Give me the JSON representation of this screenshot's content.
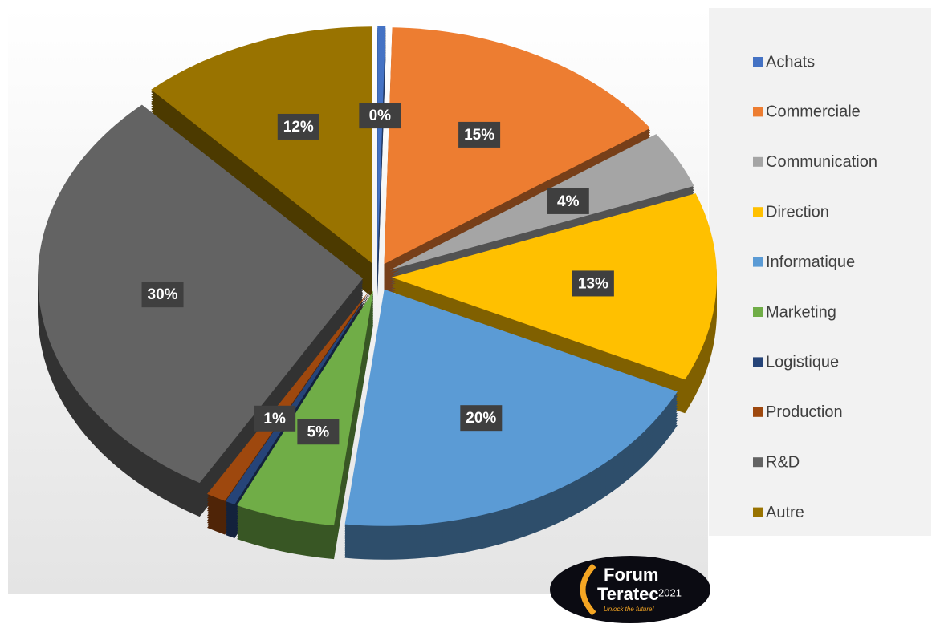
{
  "chart_data": {
    "type": "pie",
    "categories": [
      "Achats",
      "Commerciale",
      "Communication",
      "Direction",
      "Informatique",
      "Marketing",
      "Logistique",
      "Production",
      "R&D",
      "Autre"
    ],
    "values": [
      0.4,
      15,
      4,
      13,
      20,
      5,
      0.5,
      1,
      30,
      12
    ],
    "value_labels": [
      "0%",
      "15%",
      "4%",
      "13%",
      "20%",
      "5%",
      null,
      "1%",
      "30%",
      "12%"
    ],
    "colors": [
      "#4472c4",
      "#ed7d31",
      "#a5a5a5",
      "#ffc000",
      "#5b9bd5",
      "#70ad47",
      "#264478",
      "#9e480e",
      "#636363",
      "#997300"
    ],
    "legend": "right"
  },
  "logo": {
    "line1": "Forum",
    "line2": "Teratec",
    "year": "2021",
    "tagline": "Unlock the future!"
  }
}
